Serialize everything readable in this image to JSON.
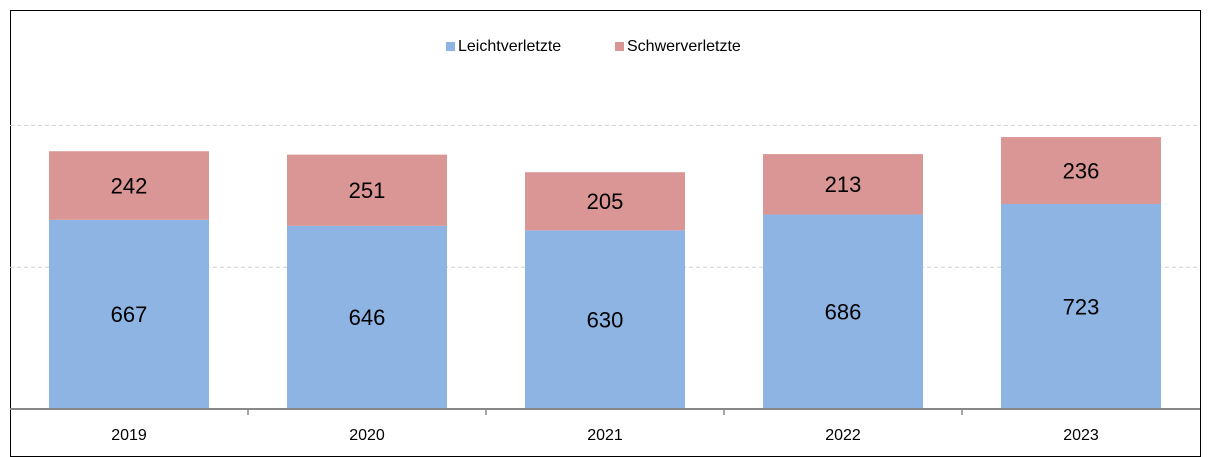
{
  "chart_data": {
    "type": "stacked_bar",
    "categories": [
      "2019",
      "2020",
      "2021",
      "2022",
      "2023"
    ],
    "series": [
      {
        "name": "Leichtverletzte",
        "color": "#8eb4e3",
        "values": [
          667,
          646,
          630,
          686,
          723
        ]
      },
      {
        "name": "Schwerverletzte",
        "color": "#d99694",
        "values": [
          242,
          251,
          205,
          213,
          236
        ]
      }
    ],
    "ylim": [
      0,
      1400
    ],
    "yticks": [
      0,
      500,
      1000
    ],
    "grid": true,
    "legend": "top"
  }
}
